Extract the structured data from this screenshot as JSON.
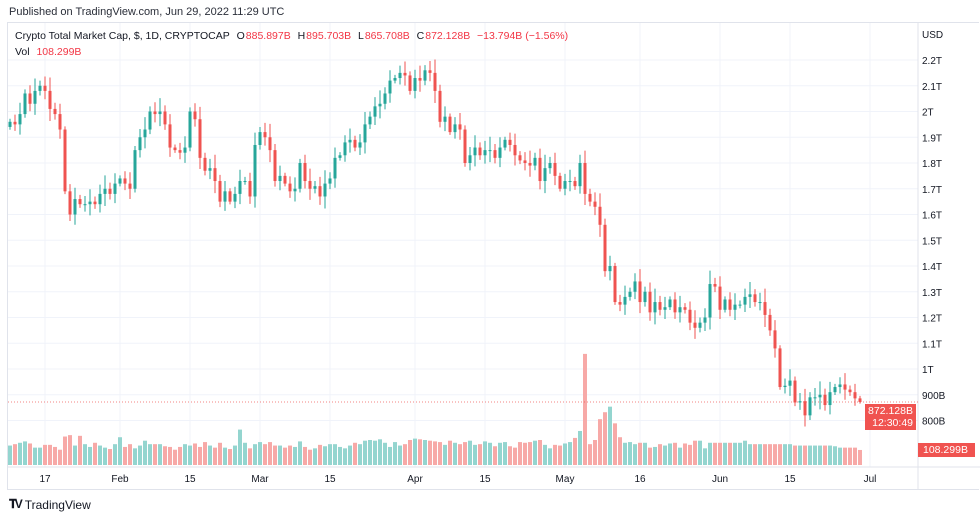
{
  "header": {
    "published": "Published on TradingView.com, Jun 29, 2022 11:29 UTC"
  },
  "legend": {
    "symbol": "Crypto Total Market Cap, $, 1D, CRYPTOCAP",
    "open_label": "O",
    "open": "885.897B",
    "high_label": "H",
    "high": "895.703B",
    "low_label": "L",
    "low": "865.708B",
    "close_label": "C",
    "close": "872.128B",
    "change": "−13.794B (−1.56%)",
    "vol_label": "Vol",
    "vol": "108.299B"
  },
  "price_tag": {
    "price": "872.128B",
    "countdown": "12:30:49"
  },
  "volume_tag": {
    "value": "108.299B"
  },
  "logo": {
    "text": "TradingView"
  },
  "colors": {
    "up": "#26a69a",
    "down": "#ef5350",
    "up_volume": "#94d5cf",
    "down_volume": "#f7a9a7",
    "tag": "#f05350"
  },
  "chart_data": {
    "type": "candlestick",
    "currency_label": "USD",
    "y_unit": "T",
    "ylim": [
      0.8,
      2.2
    ],
    "y_ticks": [
      "2.2T",
      "2.1T",
      "2T",
      "1.9T",
      "1.8T",
      "1.7T",
      "1.6T",
      "1.5T",
      "1.4T",
      "1.3T",
      "1.2T",
      "1.1T",
      "1T",
      "900B",
      "800B"
    ],
    "x_ticks": [
      "17",
      "Feb",
      "15",
      "Mar",
      "15",
      "Apr",
      "15",
      "May",
      "16",
      "Jun",
      "15",
      "Jul"
    ],
    "grid": true,
    "first_open": 1.94,
    "last_candle": {
      "open": 0.885897,
      "high": 0.895703,
      "low": 0.865708,
      "close": 0.872128
    },
    "months": [
      {
        "month": "2022-01",
        "first_day": 10,
        "close": [
          1.96,
          1.95,
          1.99,
          2.07,
          2.03,
          2.08,
          2.1,
          2.08,
          2.01,
          1.99,
          1.93,
          1.69,
          1.6,
          1.66,
          1.64,
          1.64,
          1.65,
          1.64,
          1.68,
          1.7,
          1.68,
          1.72
        ],
        "volume": [
          140,
          150,
          160,
          170,
          155,
          125,
          125,
          145,
          145,
          130,
          110,
          205,
          215,
          140,
          210,
          150,
          130,
          160,
          140,
          125,
          115,
          150
        ]
      },
      {
        "month": "2022-02",
        "first_day": 1,
        "close": [
          1.74,
          1.72,
          1.7,
          1.85,
          1.9,
          1.93,
          2.0,
          1.99,
          2.0,
          1.95,
          1.86,
          1.85,
          1.84,
          1.86,
          2.0,
          1.97,
          1.82,
          1.77,
          1.78,
          1.73,
          1.65,
          1.69,
          1.65,
          1.68,
          1.73,
          1.73,
          1.67,
          1.87
        ],
        "volume": [
          200,
          130,
          150,
          120,
          140,
          175,
          150,
          150,
          150,
          135,
          130,
          110,
          130,
          150,
          140,
          155,
          130,
          165,
          140,
          125,
          160,
          125,
          115,
          140,
          255,
          160,
          120,
          150
        ]
      },
      {
        "month": "2022-03",
        "first_day": 1,
        "close": [
          1.92,
          1.9,
          1.85,
          1.73,
          1.75,
          1.72,
          1.69,
          1.7,
          1.8,
          1.73,
          1.7,
          1.71,
          1.67,
          1.72,
          1.74,
          1.82,
          1.83,
          1.88,
          1.89,
          1.86,
          1.88,
          1.95,
          1.98,
          2.02,
          2.03,
          2.07,
          2.12,
          2.13,
          2.15,
          2.14,
          2.08
        ],
        "volume": [
          165,
          150,
          165,
          140,
          140,
          125,
          140,
          130,
          170,
          130,
          110,
          120,
          145,
          135,
          150,
          150,
          130,
          120,
          140,
          160,
          150,
          175,
          180,
          175,
          185,
          160,
          130,
          165,
          140,
          150,
          180
        ]
      },
      {
        "month": "2022-04",
        "first_day": 1,
        "close": [
          2.13,
          2.12,
          2.16,
          2.15,
          2.08,
          1.96,
          1.98,
          1.92,
          1.95,
          1.93,
          1.8,
          1.83,
          1.86,
          1.83,
          1.85,
          1.85,
          1.82,
          1.86,
          1.89,
          1.87,
          1.83,
          1.81,
          1.8,
          1.79,
          1.82,
          1.73,
          1.78,
          1.8,
          1.75,
          1.7
        ],
        "volume": [
          190,
          185,
          180,
          175,
          170,
          165,
          145,
          175,
          160,
          150,
          165,
          175,
          145,
          150,
          170,
          160,
          135,
          160,
          165,
          135,
          125,
          165,
          160,
          165,
          175,
          180,
          145,
          120,
          145,
          140
        ]
      },
      {
        "month": "2022-05",
        "first_day": 1,
        "close": [
          1.73,
          1.73,
          1.71,
          1.8,
          1.68,
          1.65,
          1.63,
          1.56,
          1.38,
          1.4,
          1.26,
          1.25,
          1.28,
          1.3,
          1.34,
          1.26,
          1.3,
          1.22,
          1.26,
          1.23,
          1.24,
          1.27,
          1.22,
          1.24,
          1.23,
          1.18,
          1.16,
          1.18,
          1.2,
          1.33,
          1.32
        ],
        "volume": [
          155,
          165,
          195,
          245,
          800,
          150,
          180,
          330,
          380,
          420,
          300,
          200,
          160,
          165,
          150,
          160,
          160,
          125,
          130,
          150,
          140,
          155,
          160,
          125,
          155,
          145,
          175,
          175,
          120,
          160,
          160
        ]
      },
      {
        "month": "2022-06",
        "first_day": 1,
        "close": [
          1.23,
          1.27,
          1.23,
          1.25,
          1.25,
          1.28,
          1.29,
          1.26,
          1.26,
          1.21,
          1.15,
          1.08,
          0.93,
          0.935,
          0.955,
          0.87,
          0.875,
          0.82,
          0.89,
          0.89,
          0.9,
          0.86,
          0.91,
          0.93,
          0.94,
          0.92,
          0.91,
          0.886,
          0.872
        ],
        "volume": [
          160,
          160,
          160,
          160,
          160,
          175,
          150,
          150,
          150,
          150,
          150,
          150,
          150,
          150,
          150,
          140,
          140,
          140,
          140,
          140,
          140,
          140,
          140,
          135,
          125,
          125,
          125,
          125,
          108.3
        ]
      }
    ]
  }
}
